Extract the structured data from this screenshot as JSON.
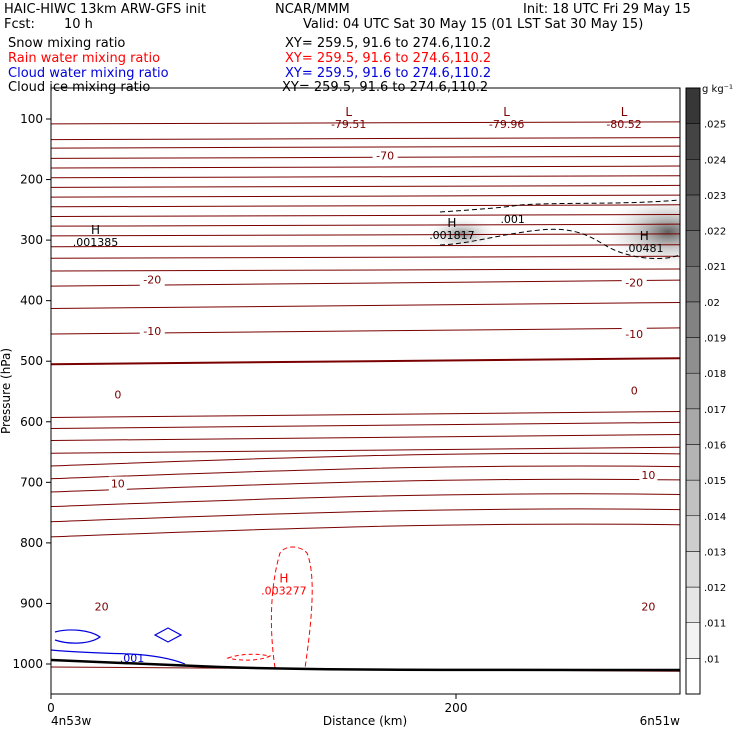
{
  "header": {
    "left1": "HAIC-HIWC 13km ARW-GFS init",
    "ncar": "NCAR/MMM",
    "init": "Init: 18 UTC Fri 29 May 15",
    "fcst_label": "Fcst:",
    "fcst_value": "10 h",
    "valid": "Valid: 04 UTC Sat 30 May 15 (01 LST Sat 30 May 15)"
  },
  "fields": [
    {
      "name": "Snow mixing ratio",
      "xy": "XY= 259.5, 91.6 to 274.6,110.2",
      "color": "#000000"
    },
    {
      "name": "Rain water mixing ratio",
      "xy": "XY= 259.5, 91.6 to 274.6,110.2",
      "color": "#ff0000"
    },
    {
      "name": "Cloud water mixing ratio",
      "xy": "XY= 259.5, 91.6 to 274.6,110.2",
      "color": "#0000dd"
    },
    {
      "name": "Cloud ice mixing ratio",
      "xy": "XY= 259.5, 91.6 to 274.6,110.2",
      "color": "#000000"
    }
  ],
  "chart_data": {
    "type": "heatmap",
    "xlabel": "Distance (km)",
    "ylabel": "Pressure (hPa)",
    "xlim": [
      0,
      300
    ],
    "ylim": [
      1050,
      50
    ],
    "x_ticks": [
      0,
      200
    ],
    "y_ticks": [
      100,
      200,
      300,
      400,
      500,
      600,
      700,
      800,
      900,
      1000
    ],
    "x_endpoint_labels": {
      "left": "4n53w",
      "right": "6n51w"
    },
    "colorbar": {
      "unit": "g kg⁻¹",
      "levels": [
        ".01",
        ".011",
        ".012",
        ".013",
        ".014",
        ".015",
        ".016",
        ".017",
        ".018",
        ".019",
        ".02",
        ".021",
        ".022",
        ".023",
        ".024",
        ".025"
      ]
    },
    "temperature_contour_labels": [
      {
        "text": "-70",
        "x": 165,
        "p": 160
      },
      {
        "text": "-20",
        "x": 50,
        "p": 365
      },
      {
        "text": "-20",
        "x": 288,
        "p": 370
      },
      {
        "text": "-10",
        "x": 50,
        "p": 450
      },
      {
        "text": "-10",
        "x": 288,
        "p": 455
      },
      {
        "text": "0",
        "x": 33,
        "p": 555
      },
      {
        "text": "0",
        "x": 288,
        "p": 548
      },
      {
        "text": "10",
        "x": 33,
        "p": 702
      },
      {
        "text": "10",
        "x": 295,
        "p": 688
      },
      {
        "text": "20",
        "x": 25,
        "p": 905
      },
      {
        "text": "20",
        "x": 295,
        "p": 905
      }
    ],
    "extrema": [
      {
        "type": "L",
        "value": "-79.51",
        "x": 147,
        "p": 95
      },
      {
        "type": "L",
        "value": "-79.96",
        "x": 225,
        "p": 95
      },
      {
        "type": "L",
        "value": "-80.52",
        "x": 283,
        "p": 95
      },
      {
        "type": "H",
        "value": ".001385",
        "x": 22,
        "p": 290
      },
      {
        "type": "H",
        "value": ".001817",
        "x": 198,
        "p": 278
      },
      {
        "type": "H",
        "value": ".00481",
        "x": 293,
        "p": 300
      },
      {
        "type": "H",
        "value": ".003277",
        "x": 115,
        "p": 865
      }
    ],
    "contour_annotations": [
      {
        "text": ".001",
        "x": 228,
        "p": 265,
        "field": "Cloud ice mixing ratio"
      },
      {
        "text": ".001",
        "x": 40,
        "p": 990,
        "field": "Cloud water mixing ratio"
      }
    ]
  }
}
